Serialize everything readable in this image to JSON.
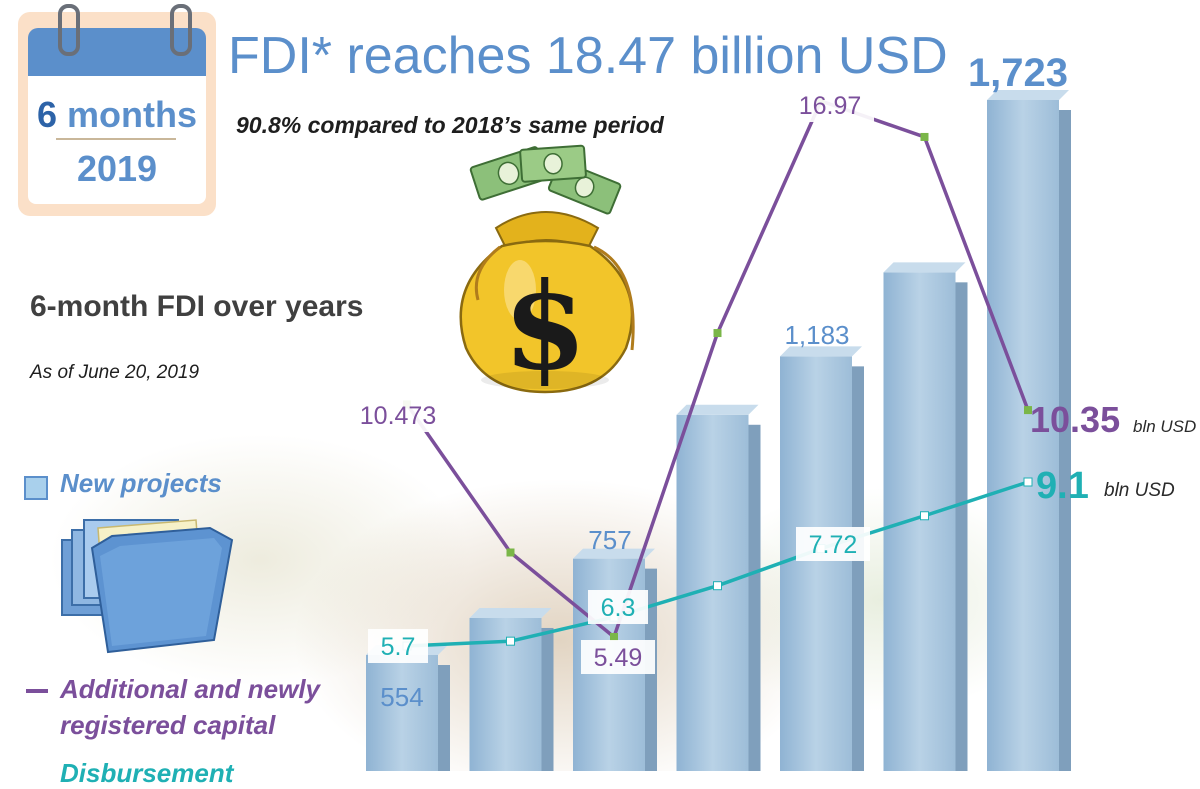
{
  "header": {
    "calendar_months": "6",
    "calendar_months_word": "months",
    "calendar_year": "2019",
    "title": "FDI* reaches 18.47 billion USD",
    "subtitle": "90.8% compared to 2018’s same period"
  },
  "section": {
    "heading": "6-month FDI over years",
    "as_of": "As of June 20, 2019"
  },
  "legend": {
    "new_projects": "New projects",
    "capital_line1": "Additional and newly",
    "capital_line2": "registered capital",
    "disbursement_partial": "Disbursement"
  },
  "icons": [
    "calendar-icon",
    "money-bag-icon",
    "folder-icon"
  ],
  "colors": {
    "bars": "#a9c6de",
    "bar_labels": "#5b8fcb",
    "capital_line": "#7b4f9b",
    "disbursement_line": "#1fb0b4",
    "point_markers": "#7ab648"
  },
  "chart_data": {
    "type": "bar",
    "categories": [
      "",
      "",
      "",
      "",
      "",
      "",
      ""
    ],
    "series": [
      {
        "values": [
          554,
          632,
          757,
          1060,
          1183,
          1360,
          1723
        ],
        "labels": [
          "554",
          "",
          "757",
          "",
          "1,183",
          "",
          "1,723"
        ]
      },
      {
        "values": [
          10.473,
          7.3,
          5.49,
          12.0,
          16.97,
          16.2,
          10.35
        ],
        "labels": [
          "10.473",
          "",
          "5.49",
          "",
          "16.97",
          "",
          "10.35"
        ],
        "unit": "bln USD"
      },
      {
        "values": [
          5.7,
          5.8,
          6.3,
          6.95,
          7.72,
          8.4,
          9.1
        ],
        "labels": [
          "5.7",
          "",
          "6.3",
          "",
          "7.72",
          "",
          "9.1"
        ],
        "unit": "bln USD"
      }
    ]
  }
}
